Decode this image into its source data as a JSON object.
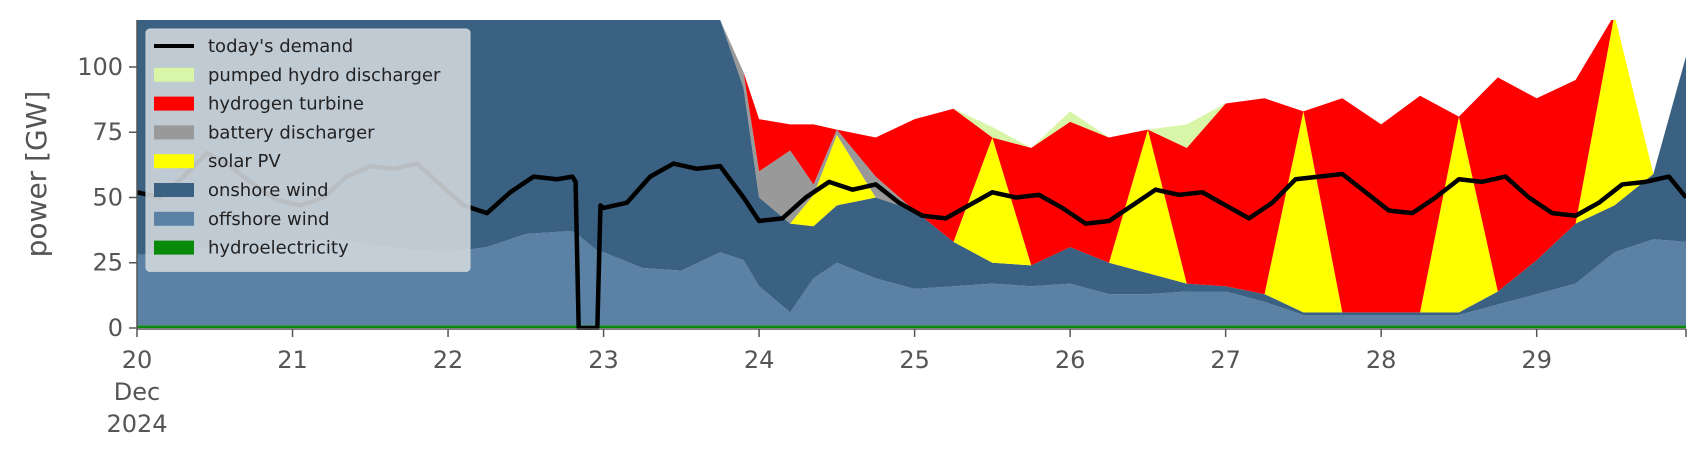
{
  "chart_data": {
    "type": "area",
    "title": "",
    "xlabel": "",
    "ylabel": "power [GW]",
    "ylim": [
      0,
      118
    ],
    "yticks": [
      0,
      25,
      50,
      75,
      100
    ],
    "xlim": [
      20,
      29.96
    ],
    "xticks": [
      {
        "x": 20,
        "label": "20",
        "sublabel1": "Dec",
        "sublabel2": "2024"
      },
      {
        "x": 21,
        "label": "21"
      },
      {
        "x": 22,
        "label": "22"
      },
      {
        "x": 23,
        "label": "23"
      },
      {
        "x": 24,
        "label": "24"
      },
      {
        "x": 25,
        "label": "25"
      },
      {
        "x": 26,
        "label": "26"
      },
      {
        "x": 27,
        "label": "27"
      },
      {
        "x": 28,
        "label": "28"
      },
      {
        "x": 29,
        "label": "29"
      }
    ],
    "grid": false,
    "legend_position": "upper-left",
    "legend": [
      {
        "label": "today's demand",
        "kind": "line",
        "color": "#000000"
      },
      {
        "label": "pumped hydro discharger",
        "kind": "area",
        "color": "#d9f5a8"
      },
      {
        "label": "hydrogen turbine",
        "kind": "area",
        "color": "#ff0000"
      },
      {
        "label": "battery discharger",
        "kind": "area",
        "color": "#999999"
      },
      {
        "label": "solar PV",
        "kind": "area",
        "color": "#ffff00"
      },
      {
        "label": "onshore wind",
        "kind": "area",
        "color": "#3b6182"
      },
      {
        "label": "offshore wind",
        "kind": "area",
        "color": "#5b82a5"
      },
      {
        "label": "hydroelectricity",
        "kind": "area",
        "color": "#0a8a0a"
      }
    ],
    "x": [
      20.0,
      20.25,
      20.5,
      20.75,
      21.0,
      21.25,
      21.5,
      21.75,
      22.0,
      22.25,
      22.5,
      22.75,
      22.8,
      22.83,
      22.97,
      23.0,
      23.25,
      23.5,
      23.75,
      23.9,
      24.0,
      24.2,
      24.35,
      24.5,
      24.75,
      25.0,
      25.25,
      25.5,
      25.75,
      26.0,
      26.25,
      26.5,
      26.75,
      27.0,
      27.25,
      27.5,
      27.75,
      28.0,
      28.25,
      28.5,
      28.75,
      29.0,
      29.25,
      29.5,
      29.75,
      29.96
    ],
    "series": [
      {
        "name": "hydroelectricity",
        "color": "#0a8a0a",
        "values": [
          1,
          1,
          1,
          1,
          1,
          1,
          1,
          1,
          1,
          1,
          1,
          1,
          1,
          1,
          1,
          1,
          1,
          1,
          1,
          1,
          1,
          1,
          1,
          1,
          1,
          1,
          1,
          1,
          1,
          1,
          1,
          1,
          1,
          1,
          1,
          1,
          1,
          1,
          1,
          1,
          1,
          1,
          1,
          1,
          1,
          1
        ]
      },
      {
        "name": "offshore wind",
        "color": "#5b82a5",
        "values": [
          27,
          28,
          30,
          31,
          32,
          33,
          31,
          29,
          28,
          30,
          35,
          36,
          36,
          35,
          28,
          28,
          22,
          21,
          28,
          25,
          15,
          5,
          18,
          24,
          18,
          14,
          15,
          16,
          15,
          16,
          12,
          12,
          13,
          13,
          9,
          4,
          4,
          4,
          4,
          4,
          8,
          12,
          16,
          28,
          33,
          32
        ]
      },
      {
        "name": "onshore wind",
        "color": "#3b6182",
        "values": [
          90,
          89,
          87,
          86,
          85,
          84,
          86,
          88,
          89,
          88,
          83,
          81,
          81,
          82,
          90,
          89,
          96,
          97,
          89,
          66,
          34,
          34,
          20,
          22,
          31,
          30,
          17,
          8,
          8,
          14,
          12,
          8,
          3,
          2,
          3,
          1,
          1,
          1,
          1,
          1,
          5,
          13,
          23,
          18,
          25,
          71
        ]
      },
      {
        "name": "solar PV",
        "color": "#ffff00",
        "values": [
          0,
          0,
          3,
          0,
          0,
          0,
          0,
          0,
          0,
          0,
          0,
          0,
          0,
          0,
          0,
          0,
          0,
          0,
          0,
          0,
          0,
          0,
          12,
          27,
          0,
          0,
          0,
          48,
          0,
          0,
          0,
          55,
          0,
          0,
          0,
          77,
          0,
          0,
          0,
          75,
          0,
          0,
          0,
          73,
          0,
          0
        ]
      },
      {
        "name": "battery discharger",
        "color": "#999999",
        "values": [
          0,
          0,
          0,
          0,
          0,
          0,
          0,
          0,
          0,
          0,
          0,
          0,
          0,
          0,
          0,
          0,
          0,
          0,
          0,
          6,
          10,
          28,
          4,
          2,
          8,
          0,
          0,
          0,
          0,
          0,
          0,
          0,
          0,
          0,
          0,
          0,
          0,
          0,
          0,
          0,
          0,
          0,
          0,
          0,
          0,
          0
        ]
      },
      {
        "name": "hydrogen turbine",
        "color": "#ff0000",
        "values": [
          0,
          0,
          0,
          0,
          0,
          0,
          0,
          0,
          0,
          0,
          0,
          0,
          0,
          0,
          0,
          0,
          0,
          0,
          0,
          0,
          20,
          10,
          23,
          0,
          15,
          35,
          51,
          0,
          45,
          48,
          48,
          0,
          52,
          70,
          75,
          0,
          82,
          72,
          83,
          0,
          82,
          62,
          55,
          0,
          0,
          0
        ]
      },
      {
        "name": "pumped hydro discharger",
        "color": "#d9f5a8",
        "values": [
          0,
          0,
          0,
          0,
          0,
          0,
          0,
          0,
          0,
          0,
          0,
          0,
          0,
          0,
          0,
          0,
          0,
          0,
          0,
          0,
          0,
          0,
          0,
          0,
          0,
          0,
          0,
          4,
          0,
          4,
          0,
          0,
          9,
          0,
          0,
          0,
          0,
          0,
          0,
          0,
          0,
          0,
          0,
          0,
          0,
          0
        ]
      }
    ],
    "demand": {
      "name": "today's demand",
      "color": "#000000",
      "x": [
        20.0,
        20.15,
        20.3,
        20.45,
        20.6,
        20.75,
        20.9,
        21.05,
        21.2,
        21.35,
        21.5,
        21.65,
        21.8,
        21.95,
        22.1,
        22.25,
        22.4,
        22.55,
        22.7,
        22.8,
        22.82,
        22.84,
        22.96,
        22.98,
        23.0,
        23.15,
        23.3,
        23.45,
        23.6,
        23.75,
        23.9,
        24.0,
        24.15,
        24.3,
        24.45,
        24.6,
        24.75,
        24.9,
        25.05,
        25.2,
        25.35,
        25.5,
        25.65,
        25.8,
        25.95,
        26.1,
        26.25,
        26.4,
        26.55,
        26.7,
        26.85,
        27.0,
        27.15,
        27.3,
        27.45,
        27.6,
        27.75,
        27.9,
        28.05,
        28.2,
        28.35,
        28.5,
        28.65,
        28.8,
        28.95,
        29.1,
        29.25,
        29.4,
        29.55,
        29.7,
        29.85,
        29.96
      ],
      "values": [
        52,
        50,
        58,
        67,
        62,
        55,
        49,
        47,
        50,
        58,
        62,
        61,
        63,
        55,
        47,
        44,
        52,
        58,
        57,
        58,
        56,
        0,
        0,
        47,
        46,
        48,
        58,
        63,
        61,
        62,
        50,
        41,
        42,
        50,
        56,
        53,
        55,
        48,
        43,
        42,
        47,
        52,
        50,
        51,
        46,
        40,
        41,
        47,
        53,
        51,
        52,
        47,
        42,
        48,
        57,
        58,
        59,
        52,
        45,
        44,
        50,
        57,
        56,
        58,
        50,
        44,
        43,
        48,
        55,
        56,
        58,
        50
      ]
    }
  }
}
